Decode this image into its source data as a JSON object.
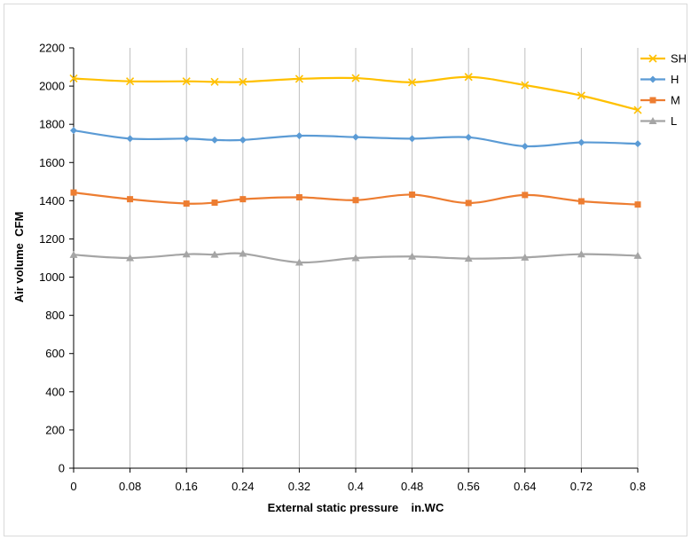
{
  "chart_data": {
    "type": "line",
    "title": "",
    "xlabel": "External static pressure    in.WC",
    "ylabel": "Air volume  CFM",
    "x": [
      0,
      0.08,
      0.16,
      0.2,
      0.24,
      0.32,
      0.4,
      0.48,
      0.56,
      0.64,
      0.72,
      0.8
    ],
    "x_tick_labels": [
      "0",
      "0.08",
      "0.16",
      "0.24",
      "0.32",
      "0.4",
      "0.48",
      "0.56",
      "0.64",
      "0.72",
      "0.8"
    ],
    "x_tick_values": [
      0,
      0.08,
      0.16,
      0.24,
      0.32,
      0.4,
      0.48,
      0.56,
      0.64,
      0.72,
      0.8
    ],
    "xlim": [
      0,
      0.8
    ],
    "ylim": [
      0,
      2200
    ],
    "y_tick_values": [
      0,
      200,
      400,
      600,
      800,
      1000,
      1200,
      1400,
      1600,
      1800,
      2000,
      2200
    ],
    "grid": "vertical",
    "legend_position": "right",
    "series": [
      {
        "name": "SH",
        "color": "#ffc000",
        "marker": "x",
        "values": [
          2040,
          2025,
          2025,
          2022,
          2022,
          2038,
          2042,
          2020,
          2048,
          2005,
          1950,
          1875
        ]
      },
      {
        "name": "H",
        "color": "#5b9bd5",
        "marker": "diamond",
        "values": [
          1768,
          1725,
          1725,
          1718,
          1718,
          1740,
          1733,
          1725,
          1732,
          1685,
          1705,
          1698
        ]
      },
      {
        "name": "M",
        "color": "#ed7d31",
        "marker": "square",
        "values": [
          1443,
          1408,
          1385,
          1390,
          1408,
          1418,
          1403,
          1432,
          1388,
          1430,
          1397,
          1380
        ]
      },
      {
        "name": "L",
        "color": "#a5a5a5",
        "marker": "triangle",
        "values": [
          1117,
          1100,
          1120,
          1118,
          1123,
          1077,
          1100,
          1108,
          1097,
          1103,
          1120,
          1112
        ]
      }
    ]
  }
}
